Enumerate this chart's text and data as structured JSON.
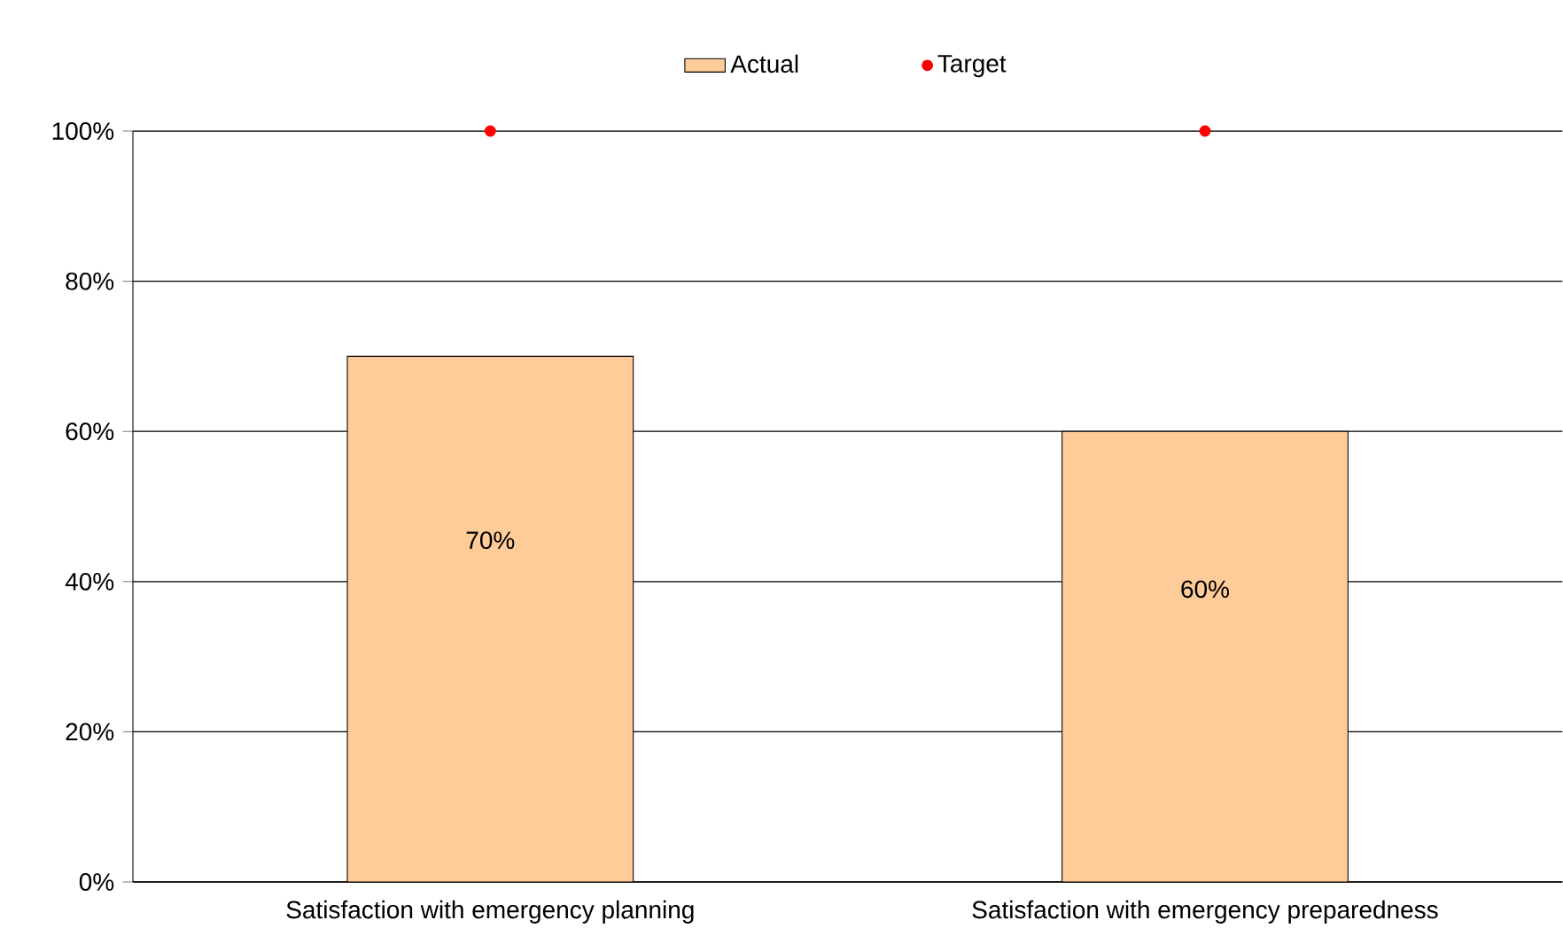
{
  "chart_data": {
    "type": "bar",
    "categories": [
      "Satisfaction with emergency planning",
      "Satisfaction with emergency preparedness"
    ],
    "series": [
      {
        "name": "Actual",
        "color": "#ffcc99",
        "values": [
          70,
          60
        ],
        "value_labels": [
          "70%",
          "60%"
        ]
      },
      {
        "name": "Target",
        "type": "scatter",
        "color": "#ff0000",
        "marker": "circle",
        "x": [
          "Satisfaction with emergency planning",
          "Satisfaction with emergency preparedness"
        ],
        "values": [
          100,
          100
        ]
      }
    ],
    "ylim": [
      0,
      100
    ],
    "yticks": [
      {
        "value": 0,
        "label": "0%"
      },
      {
        "value": 20,
        "label": "20%"
      },
      {
        "value": 40,
        "label": "40%"
      },
      {
        "value": 60,
        "label": "60%"
      },
      {
        "value": 80,
        "label": "80%"
      },
      {
        "value": 100,
        "label": "100%"
      }
    ],
    "grid": "y",
    "legend": "top"
  }
}
